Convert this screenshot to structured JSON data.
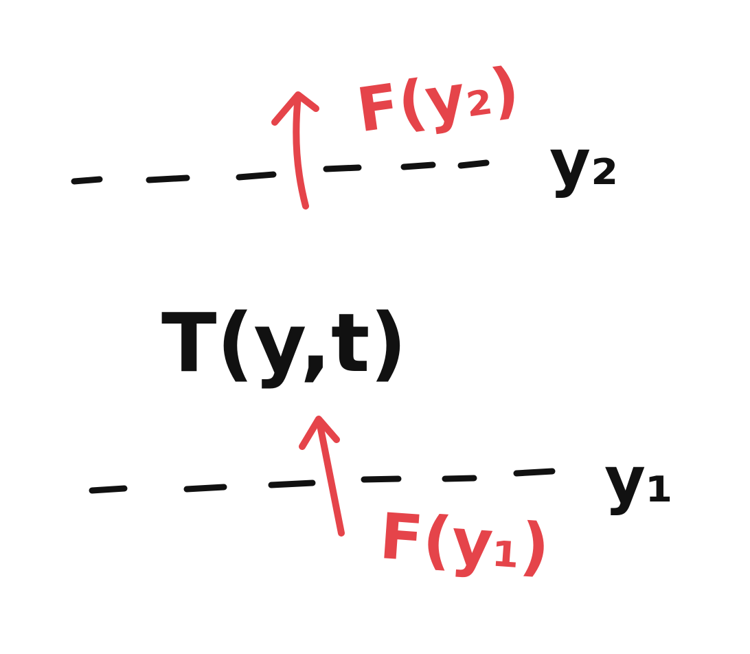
{
  "diagram": {
    "levels": [
      {
        "id": "y2",
        "label": "y₂"
      },
      {
        "id": "y1",
        "label": "y₁"
      }
    ],
    "fluxes": [
      {
        "id": "flux-y2",
        "label": "F(y₂)"
      },
      {
        "id": "flux-y1",
        "label": "F(y₁)"
      }
    ],
    "center_label": "T(y,t)",
    "colors": {
      "ink": "#111111",
      "flux": "#e5444a"
    }
  }
}
